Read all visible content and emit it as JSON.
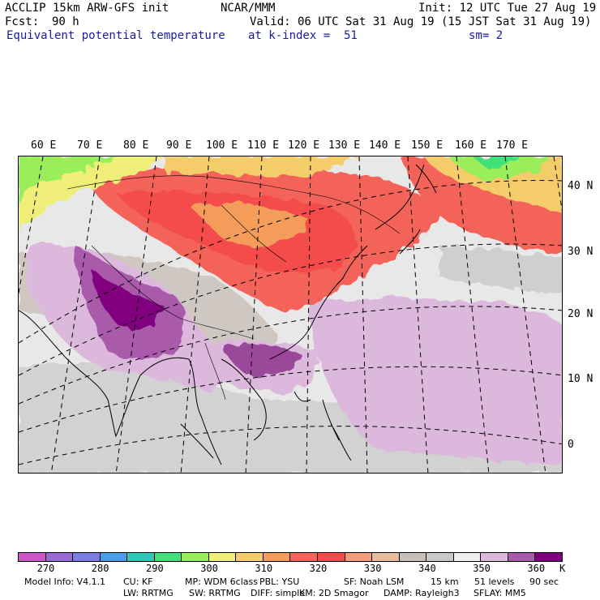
{
  "header": {
    "model_title": "ACCLIP 15km ARW-GFS init",
    "center": "NCAR/MMM",
    "init": "Init: 12 UTC Tue 27 Aug 19",
    "fcst_label": "Fcst:",
    "fcst_value": "90 h",
    "valid": "Valid: 06 UTC Sat 31 Aug 19 (15 JST Sat 31 Aug 19)",
    "field": "Equivalent potential temperature",
    "level": "at k-index =  51",
    "smooth": "sm= 2"
  },
  "map": {
    "lon_labels": [
      "60 E",
      "70 E",
      "80 E",
      "90 E",
      "100 E",
      "110 E",
      "120 E",
      "130 E",
      "140 E",
      "150 E",
      "160 E",
      "170 E"
    ],
    "lat_labels": [
      "40 N",
      "30 N",
      "20 N",
      "10 N",
      "0"
    ]
  },
  "colorbar": {
    "colors": [
      "#cc55cc",
      "#9a6ad8",
      "#7c7ce6",
      "#4a9ee8",
      "#2ec8b8",
      "#42e07a",
      "#9aee5a",
      "#eeee78",
      "#f4cc6a",
      "#f49c5a",
      "#f4645a",
      "#f44c4c",
      "#f29c7e",
      "#e6bc9a",
      "#c8c0b8",
      "#c8c8c8",
      "#eeeeee",
      "#dcb8dc",
      "#aa5aaa",
      "#800080"
    ],
    "tick_labels": [
      "270",
      "280",
      "290",
      "300",
      "310",
      "320",
      "330",
      "340",
      "350",
      "360"
    ],
    "unit": "K"
  },
  "model_info": {
    "line1": [
      "Model Info: V4.1.1",
      "CU: KF",
      "MP: WDM 6class",
      "PBL: YSU",
      "SF: Noah LSM",
      "15 km",
      "51 levels",
      "90 sec"
    ],
    "line2": [
      "LW: RRTMG",
      "SW: RRTMG",
      "DIFF: simple",
      "KM: 2D Smagor",
      "DAMP: Rayleigh3",
      "SFLAY: MM5"
    ]
  }
}
